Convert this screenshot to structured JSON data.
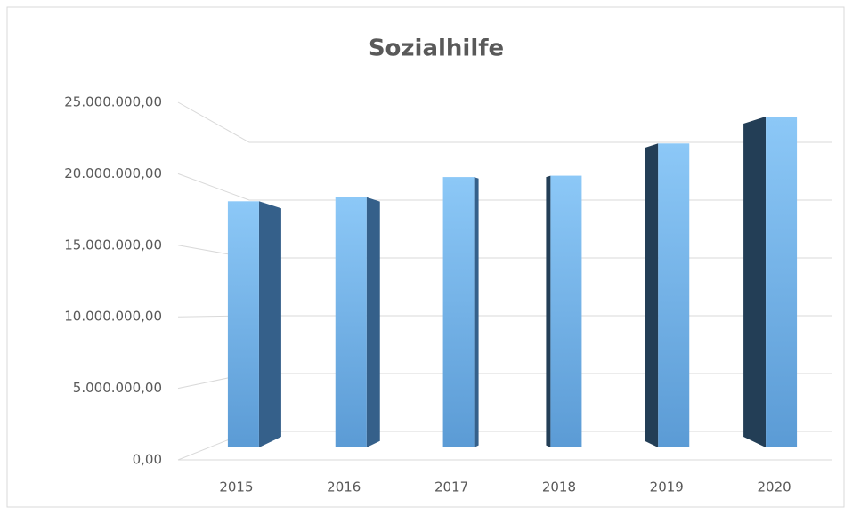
{
  "chart_data": {
    "type": "bar",
    "title": "Sozialhilfe",
    "categories": [
      "2015",
      "2016",
      "2017",
      "2018",
      "2019",
      "2020"
    ],
    "values": [
      18300000,
      18600000,
      20100000,
      20200000,
      22600000,
      24600000
    ],
    "color": "#5b9bd5",
    "ylim": [
      0,
      25000000
    ],
    "yticks": [
      {
        "value": 0,
        "label": "0,00"
      },
      {
        "value": 5000000,
        "label": "5.000.000,00"
      },
      {
        "value": 10000000,
        "label": "10.000.000,00"
      },
      {
        "value": 15000000,
        "label": "15.000.000,00"
      },
      {
        "value": 20000000,
        "label": "20.000.000,00"
      },
      {
        "value": 25000000,
        "label": "25.000.000,00"
      }
    ],
    "grid": true
  }
}
